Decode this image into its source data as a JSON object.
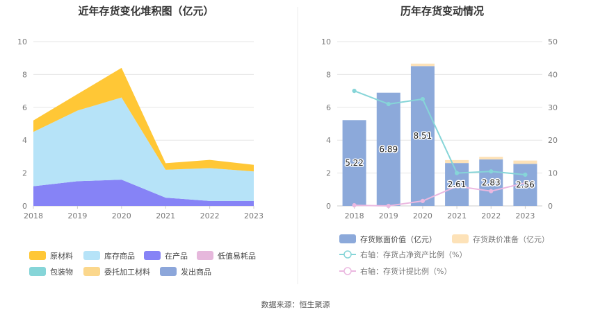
{
  "source_label": "数据来源：恒生聚源",
  "chart_data": [
    {
      "type": "area",
      "title": "近年存货变化堆积图（亿元）",
      "categories": [
        "2018",
        "2019",
        "2020",
        "2021",
        "2022",
        "2023"
      ],
      "ylim": [
        0,
        10
      ],
      "yticks": [
        0,
        2,
        4,
        6,
        8,
        10
      ],
      "grid": true,
      "legend_position": "bottom",
      "series": [
        {
          "name": "原材料",
          "color": "#FFC736",
          "values": [
            0.7,
            1.0,
            1.8,
            0.4,
            0.5,
            0.4
          ]
        },
        {
          "name": "库存商品",
          "color": "#B6E3F8",
          "values": [
            3.3,
            4.3,
            5.0,
            1.7,
            2.0,
            1.8
          ]
        },
        {
          "name": "在产品",
          "color": "#8683F6",
          "values": [
            1.2,
            1.5,
            1.6,
            0.5,
            0.3,
            0.3
          ]
        },
        {
          "name": "低值易耗品",
          "color": "#E6B8DC",
          "values": [
            0,
            0,
            0,
            0,
            0,
            0
          ]
        },
        {
          "name": "包装物",
          "color": "#86D5D8",
          "values": [
            0,
            0,
            0,
            0,
            0,
            0
          ]
        },
        {
          "name": "委托加工材料",
          "color": "#FBD78C",
          "values": [
            0,
            0,
            0,
            0,
            0,
            0
          ]
        },
        {
          "name": "发出商品",
          "color": "#8CA6DA",
          "values": [
            0,
            0,
            0,
            0,
            0,
            0
          ]
        }
      ]
    },
    {
      "type": "bar",
      "title": "历年存货变动情况",
      "categories": [
        "2018",
        "2019",
        "2020",
        "2021",
        "2022",
        "2023"
      ],
      "ylim": [
        0,
        10
      ],
      "yticks": [
        0,
        2,
        4,
        6,
        8,
        10
      ],
      "y2lim": [
        0,
        50
      ],
      "y2ticks": [
        0,
        10,
        20,
        30,
        40,
        50
      ],
      "grid": true,
      "legend_position": "bottom",
      "series": [
        {
          "name": "存货账面价值（亿元）",
          "color": "#8CA9DA",
          "axis": "left",
          "kind": "bar",
          "values": [
            5.22,
            6.89,
            8.51,
            2.61,
            2.83,
            2.56
          ],
          "labels": [
            "5.22",
            "6.89",
            "8.51",
            "2.61",
            "2.83",
            "2.56"
          ]
        },
        {
          "name": "存货跌价准备（亿元）",
          "color": "#FDE2B8",
          "axis": "left",
          "kind": "bar-stack",
          "values": [
            0,
            0,
            0.15,
            0.18,
            0.16,
            0.2
          ]
        },
        {
          "name": "右轴：存货占净资产比例（%）",
          "color": "#86D5D8",
          "axis": "right",
          "kind": "line",
          "values": [
            35.0,
            31.0,
            32.5,
            10.0,
            10.5,
            9.5
          ]
        },
        {
          "name": "右轴：存货计提比例（%）",
          "color": "#EBB8E0",
          "axis": "right",
          "kind": "line",
          "values": [
            0.2,
            0.0,
            1.5,
            6.0,
            4.5,
            7.0
          ]
        }
      ]
    }
  ]
}
